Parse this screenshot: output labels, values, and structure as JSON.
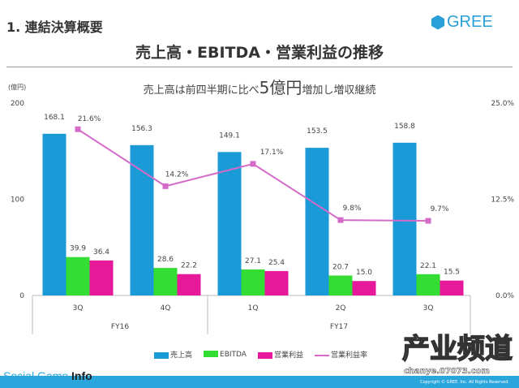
{
  "section": "1. 連結決算概要",
  "logo": "GREE",
  "title": "売上高・EBITDA・営業利益の推移",
  "subtitle": {
    "pre": "売上高は前四半期に比べ",
    "big": "5億円",
    "post": "増加し増収継続"
  },
  "unit": "(億円)",
  "chart_data": {
    "type": "bar",
    "categories": [
      "3Q",
      "4Q",
      "1Q",
      "2Q",
      "3Q"
    ],
    "groups": [
      {
        "label": "FY16",
        "span": 2
      },
      {
        "label": "FY17",
        "span": 3
      }
    ],
    "series": [
      {
        "name": "売上高",
        "type": "bar",
        "color": "#1a9ad6",
        "values": [
          168.1,
          156.3,
          149.1,
          153.5,
          158.8
        ],
        "labels": [
          "168.1",
          "156.3",
          "149.1",
          "153.5",
          "158.8"
        ]
      },
      {
        "name": "EBITDA",
        "type": "bar",
        "color": "#33dd33",
        "values": [
          39.9,
          28.6,
          27.1,
          20.7,
          22.1
        ],
        "labels": [
          "39.9",
          "28.6",
          "27.1",
          "20.7",
          "22.1"
        ]
      },
      {
        "name": "営業利益",
        "type": "bar",
        "color": "#e6199a",
        "values": [
          36.4,
          22.2,
          25.4,
          15.0,
          15.5
        ],
        "labels": [
          "36.4",
          "22.2",
          "25.4",
          "15.0",
          "15.5"
        ]
      },
      {
        "name": "営業利益率",
        "type": "line",
        "axis": "right",
        "color": "#d46bc8",
        "values": [
          21.6,
          14.2,
          17.1,
          9.8,
          9.7
        ],
        "labels": [
          "21.6%",
          "14.2%",
          "17.1%",
          "9.8%",
          "9.7%"
        ]
      }
    ],
    "ylim": [
      0,
      200
    ],
    "yticks": [
      "0",
      "100",
      "200"
    ],
    "y2lim": [
      0,
      25
    ],
    "y2ticks": [
      "0.0%",
      "12.5%",
      "25.0%"
    ],
    "grid": false,
    "legend": "bottom"
  },
  "watermarks": {
    "sgi_a": "Social Game ",
    "sgi_b": "Info",
    "chanye": "产业频道",
    "chanye_url": "chanye.07073.com"
  },
  "copyright": "Copyright © GREE, Inc. All Rights Reserved."
}
